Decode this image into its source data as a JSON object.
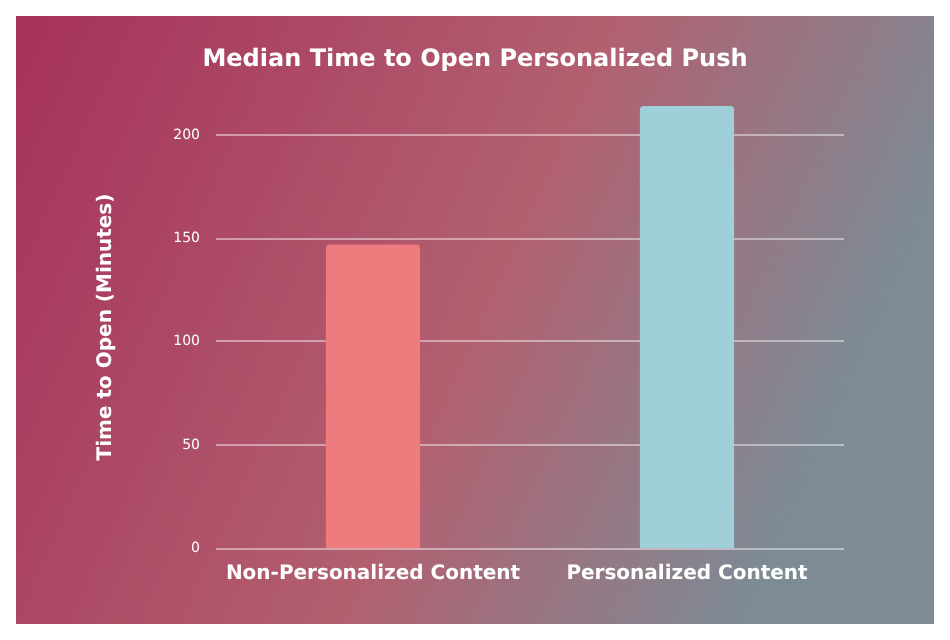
{
  "chart_data": {
    "type": "bar",
    "title": "Median Time to Open Personalized Push",
    "ylabel": "Time to Open (Minutes)",
    "categories": [
      "Non-Personalized Content",
      "Personalized Content"
    ],
    "values": [
      147,
      214
    ],
    "colors": [
      "#ee7b7e",
      "#9fcfd8"
    ],
    "ylim": [
      0,
      214
    ],
    "yticks": [
      0,
      50,
      100,
      150,
      200
    ],
    "grid": "y"
  }
}
